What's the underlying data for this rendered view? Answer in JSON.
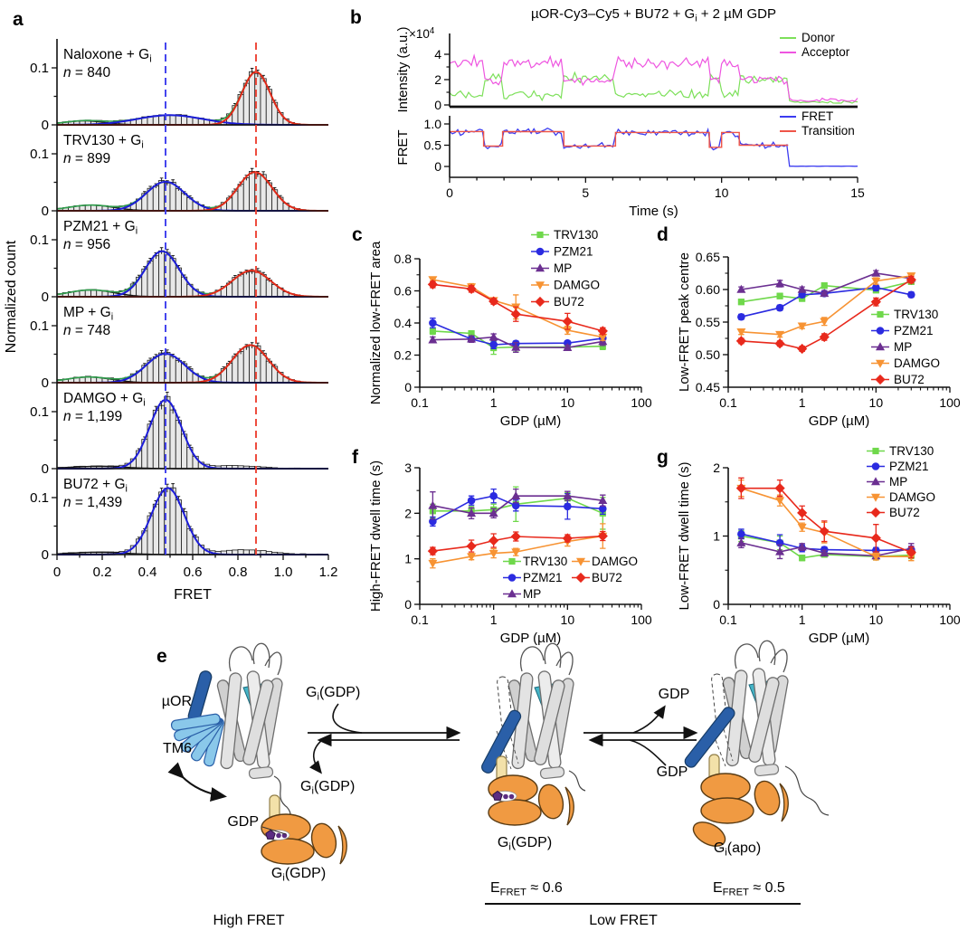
{
  "letters": {
    "a": "a",
    "b": "b",
    "c": "c",
    "d": "d",
    "e": "e",
    "f": "f",
    "g": "g"
  },
  "palette": {
    "TRV130": "#6fd84b",
    "PZM21": "#2b2be0",
    "MP": "#6b2f91",
    "DAMGO": "#f79333",
    "BU72": "#e8291c"
  },
  "chart_data": [
    {
      "id": "a",
      "type": "histogram-stack",
      "xlabel": "FRET",
      "ylabel": "Normalized count",
      "xlim": [
        0,
        1.2
      ],
      "bin_width": 0.025,
      "vmax": 0.1515,
      "x_tick_labels": [
        "0",
        "0.2",
        "0.4",
        "0.6",
        "0.8",
        "1.0",
        "1.2"
      ],
      "y_tick_labels": [
        "0",
        "0.1"
      ],
      "dashed": {
        "low_x": 0.48,
        "high_x": 0.88,
        "low_color": "#3c3cee",
        "high_color": "#ee4334"
      },
      "suffix": {
        "pre": " + G",
        "sub": "i"
      },
      "curve_colors": {
        "total": "#2f9e4c",
        "low": "#1c1cd8",
        "high": "#e02818",
        "base": "#141414"
      },
      "bar_fill": "#e8e8e8",
      "bar_stroke": "#1a1a1a",
      "panels": [
        {
          "drug": "Naloxone",
          "n_label": "n = 840",
          "low": {
            "c": 0.5,
            "a": 0.017,
            "s": 0.145
          },
          "high": {
            "c": 0.88,
            "a": 0.093,
            "s": 0.062
          },
          "base": {
            "c": 0.12,
            "a": 0.007,
            "s": 0.09
          },
          "shoulder": null
        },
        {
          "drug": "TRV130",
          "n_label": "n = 899",
          "low": {
            "c": 0.48,
            "a": 0.051,
            "s": 0.085
          },
          "high": {
            "c": 0.875,
            "a": 0.068,
            "s": 0.075
          },
          "base": {
            "c": 0.15,
            "a": 0.01,
            "s": 0.1
          },
          "shoulder": null
        },
        {
          "drug": "PZM21",
          "n_label": "n = 956",
          "low": {
            "c": 0.465,
            "a": 0.08,
            "s": 0.075
          },
          "high": {
            "c": 0.86,
            "a": 0.046,
            "s": 0.085
          },
          "base": {
            "c": 0.15,
            "a": 0.012,
            "s": 0.1
          },
          "shoulder": null
        },
        {
          "drug": "MP",
          "n_label": "n = 748",
          "low": {
            "c": 0.48,
            "a": 0.051,
            "s": 0.085
          },
          "high": {
            "c": 0.855,
            "a": 0.066,
            "s": 0.08
          },
          "base": {
            "c": 0.14,
            "a": 0.01,
            "s": 0.1
          },
          "shoulder": null
        },
        {
          "drug": "DAMGO",
          "n_label": "n = 1,199",
          "low": {
            "c": 0.48,
            "a": 0.121,
            "s": 0.07
          },
          "high": null,
          "base": {
            "c": 0.18,
            "a": 0.004,
            "s": 0.12
          },
          "shoulder": {
            "c": 0.78,
            "a": 0.005,
            "s": 0.1
          }
        },
        {
          "drug": "BU72",
          "n_label": "n = 1,439",
          "low": {
            "c": 0.49,
            "a": 0.117,
            "s": 0.072
          },
          "high": null,
          "base": {
            "c": 0.18,
            "a": 0.004,
            "s": 0.12
          },
          "shoulder": {
            "c": 0.83,
            "a": 0.008,
            "s": 0.11
          }
        }
      ]
    },
    {
      "id": "b",
      "type": "trace",
      "title": {
        "pre": "µOR-Cy3–Cy5 + BU72 + G",
        "sub": "i",
        "post": " + 2 µM GDP"
      },
      "ylabel_top": "Intensity (a.u.)",
      "ylabel_bottom": "FRET",
      "xlabel": "Time (s)",
      "scale_label": {
        "pre": "×10",
        "sup": "4"
      },
      "x_ticks": [
        0,
        5,
        10,
        15
      ],
      "tmax": 15,
      "top_ticks": [
        {
          "v": 0,
          "t": "0"
        },
        {
          "v": 2,
          "t": "2"
        },
        {
          "v": 4,
          "t": "4"
        }
      ],
      "bottom_ticks": [
        {
          "v": 0,
          "t": "0"
        },
        {
          "v": 0.5,
          "t": "0.5"
        },
        {
          "v": 1.0,
          "t": "1.0"
        }
      ],
      "legend_top": [
        {
          "label": "Donor",
          "color": "#7de05a"
        },
        {
          "label": "Acceptor",
          "color": "#ee55e0"
        }
      ],
      "legend_bottom": [
        {
          "label": "FRET",
          "color": "#3c3cf0"
        },
        {
          "label": "Transition",
          "color": "#ef5548"
        }
      ],
      "transition_segments": [
        [
          0,
          1.25,
          0.82
        ],
        [
          1.25,
          1.95,
          0.48
        ],
        [
          1.95,
          4.2,
          0.82
        ],
        [
          4.2,
          6.1,
          0.48
        ],
        [
          6.1,
          9.55,
          0.8
        ],
        [
          9.55,
          10.0,
          0.45
        ],
        [
          10.0,
          10.65,
          0.8
        ],
        [
          10.65,
          12.45,
          0.5
        ]
      ],
      "bleach_time": 12.45,
      "mean_total_intensity": 4.1
    },
    {
      "id": "c",
      "type": "scatter",
      "xlabel": "GDP (µM)",
      "ylabel": "Normalized low-FRET area",
      "xlog": true,
      "xlim": [
        0.1,
        100
      ],
      "ylim": [
        0,
        0.8
      ],
      "yticks": [
        {
          "v": 0,
          "t": "0"
        },
        {
          "v": 0.2,
          "t": "0.2"
        },
        {
          "v": 0.4,
          "t": "0.4"
        },
        {
          "v": 0.6,
          "t": "0.6"
        },
        {
          "v": 0.8,
          "t": "0.8"
        }
      ],
      "y_minor_step": 0.1,
      "xtick_labels": [
        "0.1",
        "1",
        "10",
        "100"
      ],
      "x": [
        0.15,
        0.5,
        1,
        2,
        10,
        30
      ],
      "series": [
        {
          "name": "TRV130",
          "marker": "square",
          "color": "#6fd84b",
          "values": [
            0.35,
            0.335,
            0.245,
            0.25,
            0.25,
            0.255
          ],
          "err": [
            0.02,
            0.015,
            0.04,
            0.03,
            0.012,
            0.02
          ]
        },
        {
          "name": "PZM21",
          "marker": "circle",
          "color": "#2b2be0",
          "values": [
            0.4,
            0.3,
            0.265,
            0.272,
            0.275,
            0.305
          ],
          "err": [
            0.03,
            0.02,
            0.025,
            0.015,
            0.012,
            0.02
          ]
        },
        {
          "name": "MP",
          "marker": "tri-up",
          "color": "#6b2f91",
          "values": [
            0.295,
            0.3,
            0.312,
            0.248,
            0.247,
            0.285
          ],
          "err": [
            0.018,
            0.02,
            0.02,
            0.03,
            0.015,
            0.025
          ]
        },
        {
          "name": "DAMGO",
          "marker": "tri-down",
          "color": "#f79333",
          "values": [
            0.67,
            0.625,
            0.54,
            0.5,
            0.355,
            0.312
          ],
          "err": [
            0.015,
            0.02,
            0.015,
            0.075,
            0.025,
            0.02
          ]
        },
        {
          "name": "BU72",
          "marker": "diamond",
          "color": "#e8291c",
          "values": [
            0.64,
            0.612,
            0.535,
            0.455,
            0.41,
            0.35
          ],
          "err": [
            0.02,
            0.02,
            0.018,
            0.045,
            0.05,
            0.02
          ]
        }
      ]
    },
    {
      "id": "d",
      "type": "scatter",
      "xlabel": "GDP (µM)",
      "ylabel": "Low-FRET peak centre",
      "xlog": true,
      "xlim": [
        0.1,
        100
      ],
      "ylim": [
        0.45,
        0.65
      ],
      "yticks": [
        {
          "v": 0.45,
          "t": "0.45"
        },
        {
          "v": 0.5,
          "t": "0.50"
        },
        {
          "v": 0.55,
          "t": "0.55"
        },
        {
          "v": 0.6,
          "t": "0.60"
        },
        {
          "v": 0.65,
          "t": "0.65"
        }
      ],
      "y_minor_step": 0.025,
      "xtick_labels": [
        "0.1",
        "1",
        "10",
        "100"
      ],
      "x": [
        0.15,
        0.5,
        1,
        2,
        10,
        30
      ],
      "series": [
        {
          "name": "TRV130",
          "marker": "square",
          "color": "#6fd84b",
          "values": [
            0.581,
            0.59,
            0.586,
            0.606,
            0.599,
            0.612
          ],
          "err": [
            0.004,
            0.004,
            0.004,
            0.004,
            0.004,
            0.004
          ]
        },
        {
          "name": "PZM21",
          "marker": "circle",
          "color": "#2b2be0",
          "values": [
            0.558,
            0.572,
            0.592,
            0.594,
            0.603,
            0.592
          ],
          "err": [
            0.004,
            0.004,
            0.004,
            0.004,
            0.005,
            0.004
          ]
        },
        {
          "name": "MP",
          "marker": "tri-up",
          "color": "#6b2f91",
          "values": [
            0.6,
            0.609,
            0.6,
            0.594,
            0.625,
            0.617
          ],
          "err": [
            0.004,
            0.005,
            0.004,
            0.004,
            0.004,
            0.004
          ]
        },
        {
          "name": "DAMGO",
          "marker": "tri-down",
          "color": "#f79333",
          "values": [
            0.535,
            0.531,
            0.544,
            0.551,
            0.613,
            0.621
          ],
          "err": [
            0.004,
            0.004,
            0.004,
            0.006,
            0.005,
            0.004
          ]
        },
        {
          "name": "BU72",
          "marker": "diamond",
          "color": "#e8291c",
          "values": [
            0.521,
            0.517,
            0.509,
            0.527,
            0.581,
            0.615
          ],
          "err": [
            0.004,
            0.004,
            0.004,
            0.005,
            0.006,
            0.005
          ]
        }
      ]
    },
    {
      "id": "f",
      "type": "scatter",
      "xlabel": "GDP (µM)",
      "ylabel": "High-FRET dwell time (s)",
      "xlog": true,
      "xlim": [
        0.1,
        100
      ],
      "ylim": [
        0,
        3
      ],
      "yticks": [
        {
          "v": 0,
          "t": "0"
        },
        {
          "v": 1,
          "t": "1"
        },
        {
          "v": 2,
          "t": "2"
        },
        {
          "v": 3,
          "t": "3"
        }
      ],
      "y_minor_step": 0.5,
      "xtick_labels": [
        "0.1",
        "1",
        "10",
        "100"
      ],
      "x": [
        0.15,
        0.5,
        1,
        2,
        10,
        30
      ],
      "series": [
        {
          "name": "TRV130",
          "marker": "square",
          "color": "#6fd84b",
          "values": [
            2.05,
            2.05,
            2.08,
            2.2,
            2.33,
            2.0
          ],
          "err": [
            0.15,
            0.1,
            0.12,
            0.38,
            0.12,
            0.35
          ]
        },
        {
          "name": "PZM21",
          "marker": "circle",
          "color": "#2b2be0",
          "values": [
            1.82,
            2.28,
            2.38,
            2.17,
            2.15,
            2.1
          ],
          "err": [
            0.1,
            0.1,
            0.15,
            0.12,
            0.28,
            0.12
          ]
        },
        {
          "name": "MP",
          "marker": "tri-up",
          "color": "#6b2f91",
          "values": [
            2.17,
            2.0,
            2.0,
            2.38,
            2.38,
            2.28
          ],
          "err": [
            0.3,
            0.12,
            0.1,
            0.15,
            0.1,
            0.12
          ]
        },
        {
          "name": "DAMGO",
          "marker": "tri-down",
          "color": "#f79333",
          "values": [
            0.9,
            1.05,
            1.12,
            1.15,
            1.38,
            1.5
          ],
          "err": [
            0.1,
            0.07,
            0.1,
            0.08,
            0.1,
            0.27
          ]
        },
        {
          "name": "BU72",
          "marker": "diamond",
          "color": "#e8291c",
          "values": [
            1.17,
            1.28,
            1.4,
            1.49,
            1.45,
            1.5
          ],
          "err": [
            0.08,
            0.13,
            0.15,
            0.1,
            0.08,
            0.1
          ]
        }
      ]
    },
    {
      "id": "g",
      "type": "scatter",
      "xlabel": "GDP (µM)",
      "ylabel": "Low-FRET dwell time (s)",
      "xlog": true,
      "xlim": [
        0.1,
        100
      ],
      "ylim": [
        0,
        2
      ],
      "yticks": [
        {
          "v": 0,
          "t": "0"
        },
        {
          "v": 1,
          "t": "1"
        },
        {
          "v": 2,
          "t": "2"
        }
      ],
      "y_minor_step": 0.5,
      "xtick_labels": [
        "0.1",
        "1",
        "10",
        "100"
      ],
      "x": [
        0.15,
        0.5,
        1,
        2,
        10,
        30
      ],
      "series": [
        {
          "name": "TRV130",
          "marker": "square",
          "color": "#6fd84b",
          "values": [
            1.0,
            0.9,
            0.68,
            0.73,
            0.7,
            0.72
          ],
          "err": [
            0.08,
            0.1,
            0.04,
            0.04,
            0.05,
            0.05
          ]
        },
        {
          "name": "PZM21",
          "marker": "circle",
          "color": "#2b2be0",
          "values": [
            1.03,
            0.9,
            0.82,
            0.8,
            0.79,
            0.8
          ],
          "err": [
            0.07,
            0.12,
            0.05,
            0.04,
            0.04,
            0.05
          ]
        },
        {
          "name": "MP",
          "marker": "tri-up",
          "color": "#6b2f91",
          "values": [
            0.9,
            0.77,
            0.84,
            0.75,
            0.71,
            0.82
          ],
          "err": [
            0.07,
            0.1,
            0.05,
            0.04,
            0.04,
            0.07
          ]
        },
        {
          "name": "DAMGO",
          "marker": "tri-down",
          "color": "#f79333",
          "values": [
            1.7,
            1.52,
            1.13,
            1.05,
            0.7,
            0.7
          ],
          "err": [
            0.12,
            0.08,
            0.06,
            0.15,
            0.05,
            0.06
          ]
        },
        {
          "name": "BU72",
          "marker": "diamond",
          "color": "#e8291c",
          "values": [
            1.7,
            1.7,
            1.34,
            1.07,
            0.97,
            0.76
          ],
          "err": [
            0.15,
            0.12,
            0.1,
            0.15,
            0.2,
            0.08
          ]
        }
      ]
    }
  ],
  "e_diagram": {
    "mu_or": "µOR",
    "tm6": "TM6",
    "gdp": "GDP",
    "gi": {
      "base": "G",
      "sub": "i",
      "gdp_rest": "(GDP)",
      "apo_rest": "(apo)"
    },
    "efret": {
      "base": "E",
      "sub": "FRET",
      "v06": " ≈ 0.6",
      "v05": " ≈ 0.5"
    },
    "high_fret": "High FRET",
    "low_fret": "Low FRET"
  }
}
